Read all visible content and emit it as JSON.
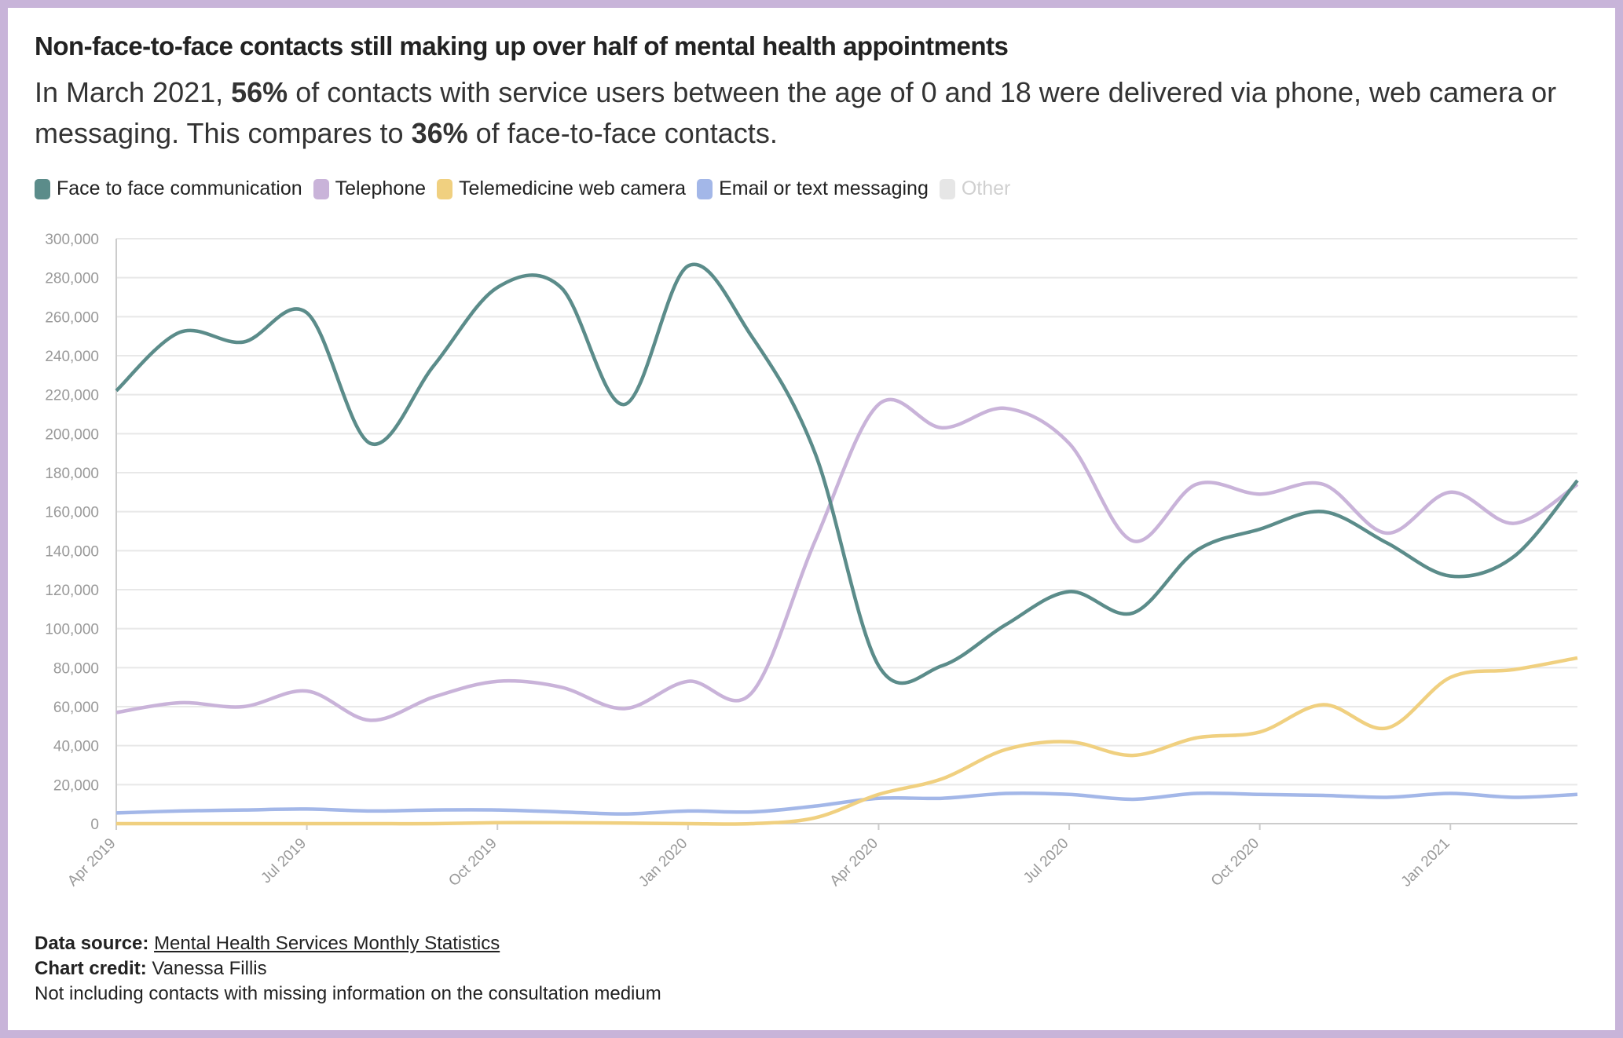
{
  "chart_data": {
    "type": "line",
    "title": "Non-face-to-face contacts still making up over half of mental health appointments",
    "subtitle": [
      {
        "text": "In March 2021, ",
        "bold": false
      },
      {
        "text": "56%",
        "bold": true
      },
      {
        "text": " of contacts with service users between the age of 0 and 18 were delivered via phone, web camera or messaging. This compares to ",
        "bold": false
      },
      {
        "text": "36%",
        "bold": true
      },
      {
        "text": " of face-to-face contacts.",
        "bold": false
      }
    ],
    "categories": [
      "Apr 2019",
      null,
      null,
      "Jul 2019",
      null,
      null,
      "Oct 2019",
      null,
      null,
      "Jan 2020",
      null,
      null,
      "Apr 2020",
      null,
      null,
      "Jul 2020",
      null,
      null,
      "Oct 2020",
      null,
      null,
      "Jan 2021",
      null,
      null
    ],
    "series": [
      {
        "name": "Face to face communication",
        "color": "#5b8c8a",
        "values": [
          222000,
          252000,
          247000,
          262000,
          195000,
          235000,
          275000,
          275000,
          215000,
          286000,
          250000,
          190000,
          81000,
          81000,
          102000,
          119000,
          108000,
          140000,
          151000,
          160000,
          144000,
          127000,
          137000,
          176000
        ]
      },
      {
        "name": "Telephone",
        "color": "#c9b3d9",
        "values": [
          57000,
          62000,
          60000,
          68000,
          53000,
          65000,
          73000,
          70000,
          59000,
          73000,
          67000,
          145000,
          215000,
          203000,
          213000,
          195000,
          145000,
          174000,
          169000,
          174000,
          149000,
          170000,
          154000,
          174000
        ]
      },
      {
        "name": "Telemedicine web camera",
        "color": "#f0d080",
        "values": [
          0,
          0,
          0,
          0,
          0,
          0,
          500,
          500,
          300,
          0,
          0,
          3000,
          15000,
          23000,
          38000,
          42000,
          35000,
          44000,
          47000,
          61000,
          49000,
          75000,
          79000,
          85000
        ]
      },
      {
        "name": "Email or text messaging",
        "color": "#a3b7e8",
        "values": [
          5500,
          6500,
          7000,
          7500,
          6500,
          7000,
          7000,
          6000,
          5000,
          6500,
          6000,
          9000,
          13000,
          13000,
          15500,
          15000,
          12500,
          15500,
          15000,
          14500,
          13500,
          15500,
          13500,
          15000
        ]
      },
      {
        "name": "Other",
        "color": "#e6e6e6",
        "visible": false
      }
    ],
    "ylim": [
      0,
      300000
    ],
    "yticks": [
      0,
      {
        "value": 20000,
        "label": "20,000"
      },
      {
        "value": 40000,
        "label": "40,000"
      },
      {
        "value": 60000,
        "label": "60,000"
      },
      {
        "value": 80000,
        "label": "80,000"
      },
      {
        "value": 100000,
        "label": "100,000"
      },
      {
        "value": 120000,
        "label": "120,000"
      },
      {
        "value": 140000,
        "label": "140,000"
      },
      {
        "value": 160000,
        "label": "160,000"
      },
      {
        "value": 180000,
        "label": "180,000"
      },
      {
        "value": 200000,
        "label": "200,000"
      },
      {
        "value": 220000,
        "label": "220,000"
      },
      {
        "value": 240000,
        "label": "240,000"
      },
      {
        "value": 260000,
        "label": "260,000"
      },
      {
        "value": 280000,
        "label": "280,000"
      },
      {
        "value": 300000,
        "label": "300,000"
      }
    ],
    "grid": true,
    "footer": {
      "source_label": "Data source:",
      "source": "Mental Health Services Monthly Statistics",
      "credit_label": "Chart credit:",
      "credit": "Vanessa Fillis",
      "note": "Not including contacts with missing information on the consultation medium"
    }
  }
}
